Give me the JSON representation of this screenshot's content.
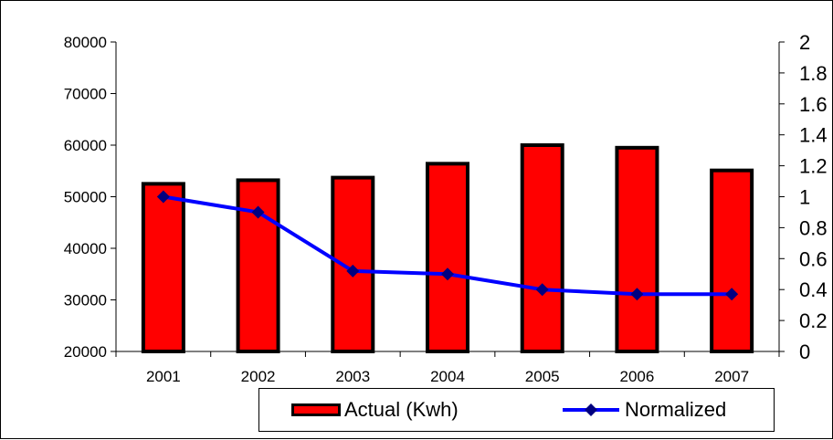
{
  "chart_data": {
    "type": "bar",
    "categories": [
      "2001",
      "2002",
      "2003",
      "2004",
      "2005",
      "2006",
      "2007"
    ],
    "series": [
      {
        "name": "Actual (Kwh)",
        "type": "bar",
        "axis": "left",
        "values": [
          52500,
          53200,
          53700,
          56400,
          60000,
          59500,
          55100
        ],
        "color": "#ff0000",
        "border_color": "#000000"
      },
      {
        "name": "Normalized",
        "type": "line",
        "axis": "right",
        "values": [
          1.0,
          0.9,
          0.52,
          0.5,
          0.4,
          0.37,
          0.37
        ],
        "color": "#0000ff",
        "marker_color": "#000080",
        "marker": "diamond"
      }
    ],
    "y_left": {
      "min": 20000,
      "max": 80000,
      "step": 10000,
      "tick_labels": [
        "20000",
        "30000",
        "40000",
        "50000",
        "60000",
        "70000",
        "80000"
      ]
    },
    "y_right": {
      "min": 0,
      "max": 2,
      "step": 0.2,
      "tick_labels": [
        "0",
        "0.2",
        "0.4",
        "0.6",
        "0.8",
        "1",
        "1.2",
        "1.4",
        "1.6",
        "1.8",
        "2"
      ]
    },
    "title": "",
    "xlabel": "",
    "ylabel": "",
    "grid": false,
    "legend_position": "bottom"
  },
  "legend": {
    "bar_label": "Actual (Kwh)",
    "line_label": "Normalized"
  }
}
